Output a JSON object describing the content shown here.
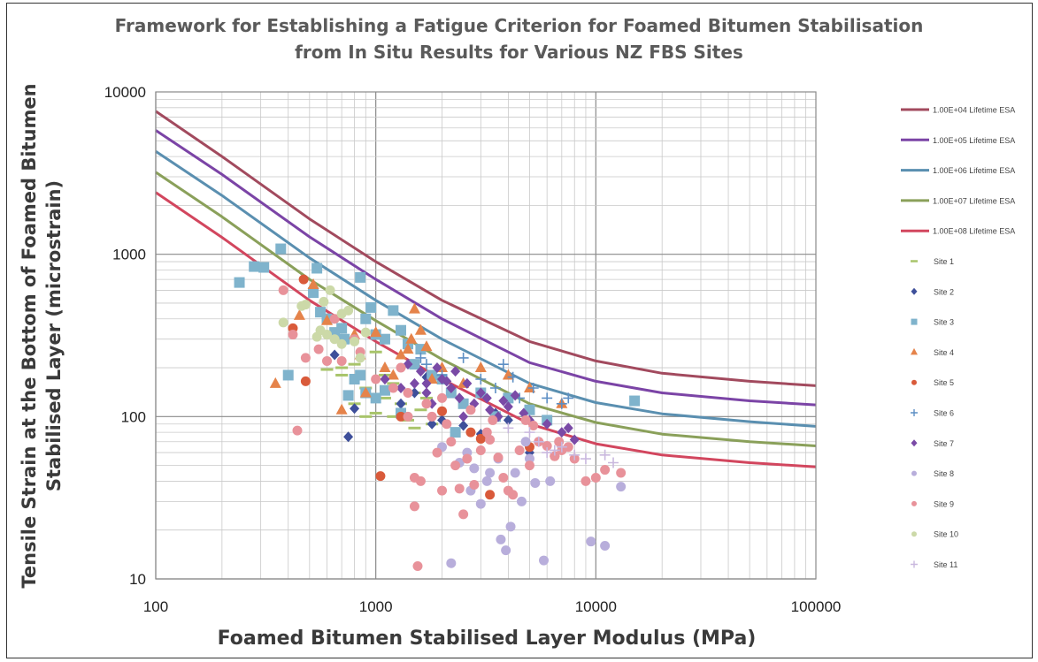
{
  "title_line1": "Framework for Establishing a Fatigue Criterion for  Foamed Bitumen Stabilisation",
  "title_line2": "from In Situ Results for Various NZ FBS Sites",
  "chart_data": {
    "type": "scatter",
    "xlabel": "Foamed Bitumen Stabilised Layer Modulus (MPa)",
    "ylabel_line1": "Tensile Strain at the Bottom of Foamed Bitumen",
    "ylabel_line2": "Stabilised Layer (microstrain)",
    "xscale": "log",
    "yscale": "log",
    "xlim": [
      100,
      100000
    ],
    "ylim": [
      10,
      10000
    ],
    "x_ticks": [
      "100",
      "1000",
      "10000",
      "100000"
    ],
    "y_ticks": [
      "10",
      "100",
      "1000",
      "10000"
    ],
    "grid": true,
    "legend_position": "right",
    "curves": [
      {
        "name": "1.00E+04 Lifetime ESA",
        "color": "#a24a5e",
        "x": [
          100,
          200,
          500,
          1000,
          2000,
          5000,
          10000,
          20000,
          50000,
          100000
        ],
        "y": [
          7600,
          4000,
          1650,
          900,
          520,
          290,
          220,
          185,
          165,
          155
        ]
      },
      {
        "name": "1.00E+05 Lifetime ESA",
        "color": "#7b44a6",
        "x": [
          100,
          200,
          500,
          1000,
          2000,
          5000,
          10000,
          20000,
          50000,
          100000
        ],
        "y": [
          5800,
          3100,
          1280,
          700,
          400,
          215,
          165,
          140,
          125,
          118
        ]
      },
      {
        "name": "1.00E+06 Lifetime ESA",
        "color": "#5a8fb0",
        "x": [
          100,
          200,
          500,
          1000,
          2000,
          5000,
          10000,
          20000,
          50000,
          100000
        ],
        "y": [
          4300,
          2300,
          950,
          520,
          300,
          160,
          122,
          104,
          93,
          87
        ]
      },
      {
        "name": "1.00E+07 Lifetime ESA",
        "color": "#8aa05a",
        "x": [
          100,
          200,
          500,
          1000,
          2000,
          5000,
          10000,
          20000,
          50000,
          100000
        ],
        "y": [
          3200,
          1700,
          700,
          390,
          225,
          120,
          92,
          78,
          70,
          66
        ]
      },
      {
        "name": "1.00E+08 Lifetime ESA",
        "color": "#d2465e",
        "x": [
          100,
          200,
          500,
          1000,
          2000,
          5000,
          10000,
          20000,
          50000,
          100000
        ],
        "y": [
          2400,
          1270,
          520,
          290,
          170,
          90,
          68,
          58,
          52,
          49
        ]
      }
    ],
    "series": [
      {
        "name": "Site 1",
        "marker": "dash",
        "color": "#a8c46a",
        "points": [
          [
            600,
            195
          ],
          [
            700,
            200
          ],
          [
            800,
            210
          ],
          [
            900,
            150
          ],
          [
            1000,
            105
          ],
          [
            1100,
            130
          ],
          [
            1200,
            160
          ],
          [
            1300,
            120
          ],
          [
            1400,
            95
          ],
          [
            1500,
            85
          ],
          [
            800,
            120
          ],
          [
            900,
            100
          ],
          [
            1000,
            250
          ],
          [
            700,
            180
          ],
          [
            1200,
            100
          ],
          [
            1600,
            110
          ],
          [
            1800,
            90
          ],
          [
            1500,
            140
          ],
          [
            1100,
            180
          ],
          [
            1700,
            130
          ]
        ]
      },
      {
        "name": "Site 2",
        "marker": "diamond",
        "color": "#3e4f9a",
        "points": [
          [
            750,
            75
          ],
          [
            800,
            112
          ],
          [
            1100,
            170
          ],
          [
            1300,
            120
          ],
          [
            1500,
            140
          ],
          [
            1800,
            90
          ],
          [
            2000,
            95
          ],
          [
            2500,
            88
          ],
          [
            3000,
            78
          ],
          [
            3500,
            105
          ],
          [
            4000,
            95
          ],
          [
            5000,
            60
          ],
          [
            650,
            240
          ],
          [
            1700,
            175
          ]
        ]
      },
      {
        "name": "Site 3",
        "marker": "square",
        "color": "#7fb3cc",
        "points": [
          [
            240,
            670
          ],
          [
            280,
            840
          ],
          [
            310,
            830
          ],
          [
            370,
            1080
          ],
          [
            400,
            180
          ],
          [
            520,
            580
          ],
          [
            540,
            820
          ],
          [
            560,
            440
          ],
          [
            600,
            400
          ],
          [
            650,
            330
          ],
          [
            700,
            350
          ],
          [
            720,
            300
          ],
          [
            800,
            170
          ],
          [
            850,
            720
          ],
          [
            900,
            400
          ],
          [
            950,
            470
          ],
          [
            1000,
            320
          ],
          [
            1100,
            300
          ],
          [
            1200,
            450
          ],
          [
            1300,
            340
          ],
          [
            1400,
            280
          ],
          [
            1500,
            210
          ],
          [
            1600,
            260
          ],
          [
            1800,
            180
          ],
          [
            2000,
            170
          ],
          [
            2200,
            140
          ],
          [
            2500,
            120
          ],
          [
            3000,
            140
          ],
          [
            3500,
            100
          ],
          [
            4000,
            130
          ],
          [
            5000,
            110
          ],
          [
            6000,
            95
          ],
          [
            15000,
            125
          ],
          [
            750,
            135
          ],
          [
            850,
            180
          ],
          [
            1300,
            105
          ],
          [
            2300,
            80
          ],
          [
            900,
            140
          ],
          [
            1000,
            130
          ],
          [
            1100,
            145
          ]
        ]
      },
      {
        "name": "Site 4",
        "marker": "triangle",
        "color": "#e5834a",
        "points": [
          [
            350,
            160
          ],
          [
            450,
            420
          ],
          [
            520,
            650
          ],
          [
            600,
            390
          ],
          [
            700,
            110
          ],
          [
            800,
            320
          ],
          [
            850,
            240
          ],
          [
            900,
            140
          ],
          [
            1000,
            330
          ],
          [
            1100,
            200
          ],
          [
            1200,
            180
          ],
          [
            1300,
            240
          ],
          [
            1400,
            260
          ],
          [
            1500,
            460
          ],
          [
            1600,
            340
          ],
          [
            1700,
            270
          ],
          [
            2000,
            200
          ],
          [
            2500,
            160
          ],
          [
            3000,
            200
          ],
          [
            4000,
            180
          ],
          [
            5000,
            150
          ],
          [
            7000,
            120
          ],
          [
            1800,
            170
          ],
          [
            1450,
            300
          ]
        ]
      },
      {
        "name": "Site 5",
        "marker": "circle",
        "color": "#d95a3a",
        "points": [
          [
            420,
            350
          ],
          [
            470,
            700
          ],
          [
            480,
            165
          ],
          [
            1050,
            43
          ],
          [
            1300,
            100
          ],
          [
            2000,
            108
          ],
          [
            2700,
            80
          ],
          [
            3300,
            33
          ],
          [
            3000,
            73
          ],
          [
            5000,
            65
          ],
          [
            6500,
            57
          ]
        ]
      },
      {
        "name": "Site 6",
        "marker": "plus",
        "color": "#5d8fc4",
        "points": [
          [
            1600,
            230
          ],
          [
            1700,
            210
          ],
          [
            2000,
            180
          ],
          [
            2500,
            230
          ],
          [
            3000,
            170
          ],
          [
            3800,
            210
          ],
          [
            4500,
            130
          ],
          [
            5200,
            150
          ],
          [
            6000,
            130
          ],
          [
            7000,
            120
          ],
          [
            7500,
            130
          ],
          [
            4200,
            175
          ],
          [
            3500,
            150
          ]
        ]
      },
      {
        "name": "Site 7",
        "marker": "diamond",
        "color": "#7a4aa6",
        "points": [
          [
            1100,
            170
          ],
          [
            1300,
            150
          ],
          [
            1400,
            210
          ],
          [
            1500,
            160
          ],
          [
            1600,
            190
          ],
          [
            1700,
            140
          ],
          [
            1900,
            200
          ],
          [
            2000,
            170
          ],
          [
            2200,
            150
          ],
          [
            2400,
            130
          ],
          [
            2600,
            160
          ],
          [
            2800,
            120
          ],
          [
            3000,
            140
          ],
          [
            3300,
            110
          ],
          [
            3600,
            100
          ],
          [
            4000,
            115
          ],
          [
            4300,
            135
          ],
          [
            4700,
            105
          ],
          [
            5000,
            95
          ],
          [
            6000,
            90
          ],
          [
            7000,
            80
          ],
          [
            7500,
            85
          ],
          [
            8000,
            72
          ],
          [
            2500,
            100
          ],
          [
            3200,
            130
          ],
          [
            1800,
            120
          ],
          [
            2100,
            165
          ],
          [
            1700,
            160
          ],
          [
            2300,
            190
          ],
          [
            3800,
            125
          ]
        ]
      },
      {
        "name": "Site 8",
        "marker": "circle",
        "color": "#b8aedb",
        "points": [
          [
            2200,
            12.5
          ],
          [
            2400,
            52
          ],
          [
            2600,
            60
          ],
          [
            2800,
            48
          ],
          [
            3000,
            29
          ],
          [
            3200,
            40
          ],
          [
            3600,
            55
          ],
          [
            3700,
            17.5
          ],
          [
            3900,
            15
          ],
          [
            4100,
            21
          ],
          [
            4300,
            45
          ],
          [
            4600,
            30
          ],
          [
            5000,
            55
          ],
          [
            5300,
            39
          ],
          [
            5800,
            13
          ],
          [
            6200,
            40
          ],
          [
            9500,
            17
          ],
          [
            11000,
            16
          ],
          [
            13000,
            37
          ],
          [
            2000,
            65
          ],
          [
            2700,
            35
          ],
          [
            3300,
            45
          ],
          [
            4800,
            70
          ]
        ]
      },
      {
        "name": "Site 9",
        "marker": "circle",
        "color": "#e8929a",
        "points": [
          [
            380,
            600
          ],
          [
            420,
            320
          ],
          [
            440,
            82
          ],
          [
            480,
            230
          ],
          [
            550,
            260
          ],
          [
            600,
            220
          ],
          [
            650,
            400
          ],
          [
            700,
            220
          ],
          [
            800,
            300
          ],
          [
            850,
            250
          ],
          [
            1000,
            170
          ],
          [
            1200,
            150
          ],
          [
            1300,
            200
          ],
          [
            1400,
            140
          ],
          [
            1500,
            28
          ],
          [
            1500,
            42
          ],
          [
            1550,
            12
          ],
          [
            1600,
            40
          ],
          [
            1700,
            120
          ],
          [
            1800,
            100
          ],
          [
            1900,
            60
          ],
          [
            2000,
            35
          ],
          [
            2100,
            90
          ],
          [
            2200,
            70
          ],
          [
            2300,
            50
          ],
          [
            2400,
            36
          ],
          [
            2500,
            25
          ],
          [
            2600,
            55
          ],
          [
            2800,
            38
          ],
          [
            3000,
            62
          ],
          [
            3200,
            80
          ],
          [
            3400,
            95
          ],
          [
            3600,
            56
          ],
          [
            3800,
            42
          ],
          [
            4000,
            35
          ],
          [
            4200,
            33
          ],
          [
            4500,
            62
          ],
          [
            4800,
            95
          ],
          [
            5000,
            50
          ],
          [
            5500,
            70
          ],
          [
            6000,
            66
          ],
          [
            6500,
            57
          ],
          [
            7000,
            62
          ],
          [
            7500,
            65
          ],
          [
            8000,
            55
          ],
          [
            9000,
            40
          ],
          [
            10000,
            42
          ],
          [
            11000,
            47
          ],
          [
            13000,
            45
          ],
          [
            1400,
            100
          ],
          [
            2700,
            110
          ],
          [
            3300,
            72
          ],
          [
            5200,
            88
          ],
          [
            6800,
            70
          ],
          [
            2000,
            130
          ]
        ]
      },
      {
        "name": "Site 10",
        "marker": "circle",
        "color": "#ccd9a8",
        "points": [
          [
            380,
            380
          ],
          [
            460,
            480
          ],
          [
            480,
            490
          ],
          [
            540,
            310
          ],
          [
            560,
            340
          ],
          [
            580,
            510
          ],
          [
            600,
            320
          ],
          [
            620,
            600
          ],
          [
            650,
            300
          ],
          [
            700,
            280
          ],
          [
            750,
            450
          ],
          [
            800,
            290
          ],
          [
            850,
            230
          ],
          [
            900,
            330
          ],
          [
            700,
            430
          ]
        ]
      },
      {
        "name": "Site 11",
        "marker": "plus",
        "color": "#c9b8de",
        "points": [
          [
            4000,
            85
          ],
          [
            5000,
            80
          ],
          [
            6000,
            60
          ],
          [
            7000,
            65
          ],
          [
            8000,
            58
          ],
          [
            9000,
            55
          ],
          [
            11000,
            58
          ],
          [
            12000,
            52
          ],
          [
            5500,
            70
          ],
          [
            6500,
            62
          ]
        ]
      }
    ]
  }
}
